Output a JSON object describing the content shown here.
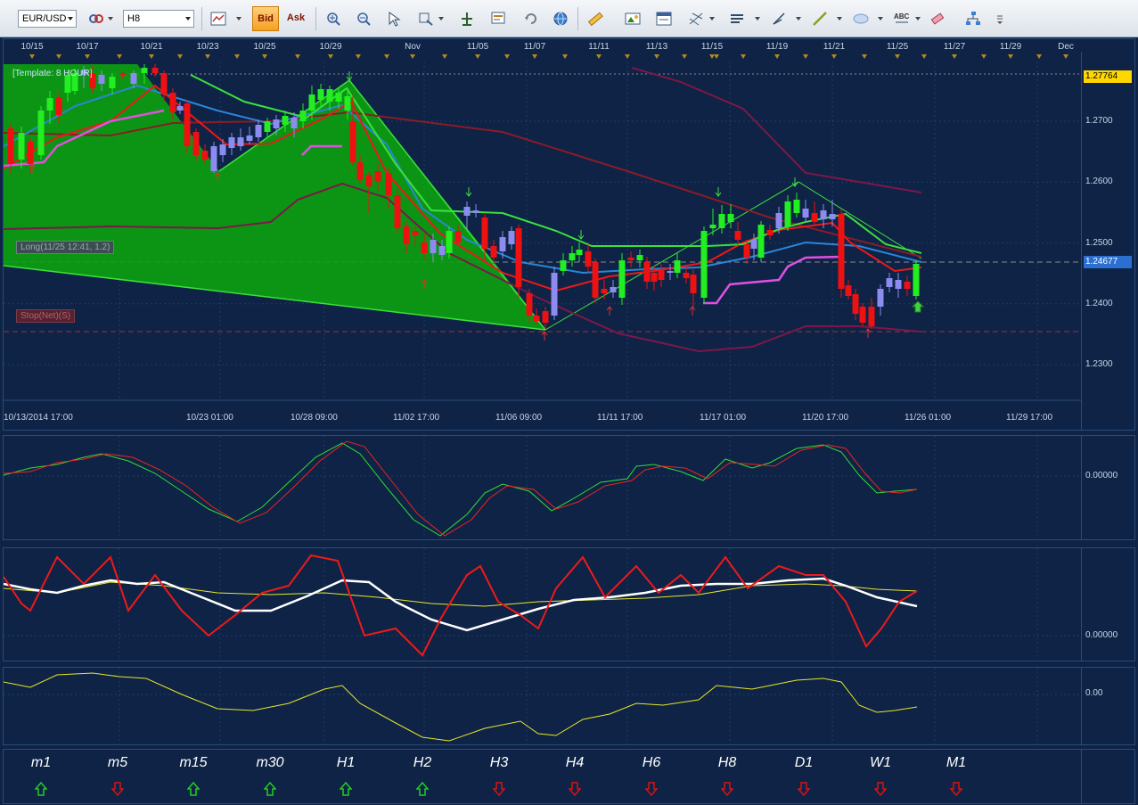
{
  "toolbar": {
    "symbol": "EUR/USD",
    "timeframe": "H8",
    "bid_label": "Bid",
    "ask_label": "Ask",
    "abc_label": "ABC"
  },
  "date_marks": [
    "10/15",
    "10/17",
    "10/21",
    "10/23",
    "10/25",
    "10/29",
    "Nov",
    "11/05",
    "11/07",
    "11/11",
    "11/13",
    "11/15",
    "11/19",
    "11/21",
    "11/25",
    "11/27",
    "11/29",
    "Dec"
  ],
  "main_chart": {
    "template_label": "[Template: 8 HOUR]",
    "position_label": "Long(11/25 12:41, 1.2)",
    "stop_label": "Stop(Net)(S)",
    "price_high_tag": "1.27764",
    "price_current_tag": "1.24677",
    "price_scale": [
      "1.2700",
      "1.2600",
      "1.2500",
      "1.2400",
      "1.2300"
    ],
    "time_labels": [
      "10/13/2014 17:00",
      "10/23 01:00",
      "10/28 09:00",
      "11/02 17:00",
      "11/06 09:00",
      "11/11 17:00",
      "11/17 01:00",
      "11/20 17:00",
      "11/26 01:00",
      "11/29 17:00"
    ]
  },
  "osc1": {
    "zero_label": "0.00000"
  },
  "osc2": {
    "zero_label": "0.00000"
  },
  "osc3": {
    "zero_label": "0.00"
  },
  "timeframes": [
    {
      "label": "m1",
      "direction": "up"
    },
    {
      "label": "m5",
      "direction": "down"
    },
    {
      "label": "m15",
      "direction": "up"
    },
    {
      "label": "m30",
      "direction": "up"
    },
    {
      "label": "H1",
      "direction": "up"
    },
    {
      "label": "H2",
      "direction": "up"
    },
    {
      "label": "H3",
      "direction": "down"
    },
    {
      "label": "H4",
      "direction": "down"
    },
    {
      "label": "H6",
      "direction": "down"
    },
    {
      "label": "H8",
      "direction": "down"
    },
    {
      "label": "D1",
      "direction": "down"
    },
    {
      "label": "W1",
      "direction": "down"
    },
    {
      "label": "M1",
      "direction": "down"
    }
  ],
  "colors": {
    "background": "#0e2346",
    "bull_candle": "#22ee22",
    "bear_candle": "#ee1111",
    "neutral_candle": "#8c8cf0",
    "pattern_fill": "#0ca010",
    "up_arrow": "#22cc22",
    "down_arrow": "#dd1111"
  }
}
